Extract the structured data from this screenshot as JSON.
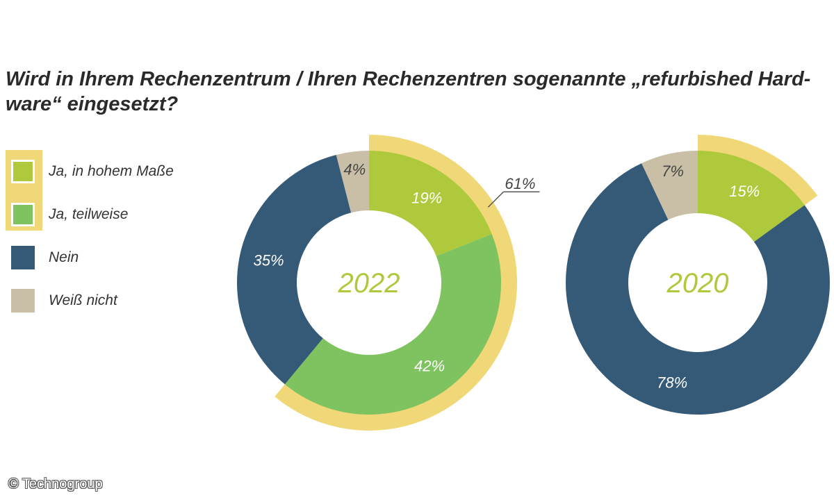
{
  "title": "Wird in Ihrem Rechenzentrum / Ihren Rechenzentren sogenannte „refurbished Hard-",
  "title_line2": "ware“ eingesetzt?",
  "credit": "© Technogroup",
  "colors": {
    "ja_hoch": "#aec93c",
    "ja_teil": "#7ec35f",
    "nein": "#355a78",
    "weiss_nicht": "#c9bfa6",
    "highlight": "#f0d878",
    "year_label": "#aec93c"
  },
  "chart_data": {
    "type": "pie",
    "legend": [
      "Ja, in hohem Maße",
      "Ja, teilweise",
      "Nein",
      "Weiß nicht"
    ],
    "legend_placement": "left",
    "charts": [
      {
        "center_label": "2022",
        "slices": [
          {
            "category": "Ja, in hohem Maße",
            "value": 19,
            "label": "19%"
          },
          {
            "category": "Ja, teilweise",
            "value": 42,
            "label": "42%"
          },
          {
            "category": "Nein",
            "value": 35,
            "label": "35%"
          },
          {
            "category": "Weiß nicht",
            "value": 4,
            "label": "4%"
          }
        ],
        "highlight": {
          "value": 61,
          "label": "61%"
        }
      },
      {
        "center_label": "2020",
        "slices": [
          {
            "category": "Ja, in hohem Maße",
            "value": 15,
            "label": "15%"
          },
          {
            "category": "Nein",
            "value": 78,
            "label": "78%"
          },
          {
            "category": "Weiß nicht",
            "value": 7,
            "label": "7%"
          }
        ],
        "highlight": {
          "value": 15,
          "label": ""
        }
      }
    ]
  }
}
